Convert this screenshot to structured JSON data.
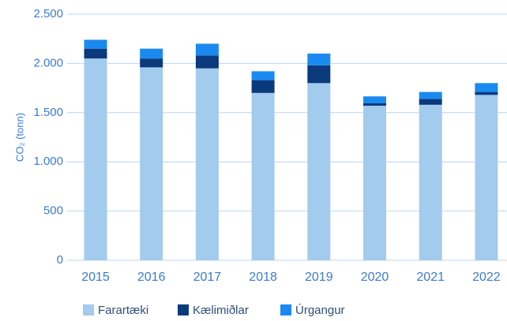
{
  "chart_data": {
    "type": "stacked_bar",
    "y_label": "CO₂ (tonn)",
    "categories": [
      "2015",
      "2016",
      "2017",
      "2018",
      "2019",
      "2020",
      "2021",
      "2022"
    ],
    "series": [
      {
        "name": "Farartæki",
        "color": "#a3cbee",
        "values": [
          2050,
          1960,
          1950,
          1700,
          1800,
          1570,
          1580,
          1680
        ]
      },
      {
        "name": "Kælimiðlar",
        "color": "#0b3a7c",
        "values": [
          100,
          90,
          130,
          130,
          180,
          25,
          60,
          30
        ]
      },
      {
        "name": "Úrgangur",
        "color": "#1a8af0",
        "values": [
          90,
          100,
          120,
          90,
          120,
          70,
          70,
          90
        ]
      }
    ],
    "ylim": [
      0,
      2500
    ],
    "yticks": [
      0,
      500,
      {
        "value": 1000,
        "label": "1.000"
      },
      {
        "value": 1500,
        "label": "1.500"
      },
      {
        "value": 2000,
        "label": "2.000"
      },
      {
        "value": 2500,
        "label": "2.500"
      }
    ],
    "grid": true
  }
}
